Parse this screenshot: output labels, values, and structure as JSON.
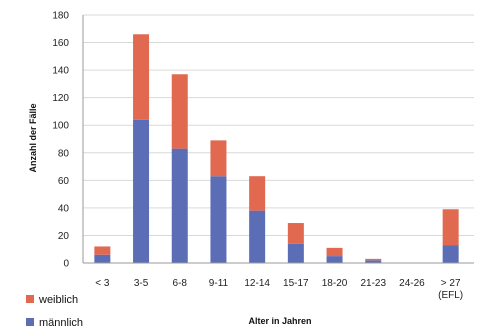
{
  "chart_data": {
    "type": "bar",
    "stacked": true,
    "categories": [
      "< 3",
      "3-5",
      "6-8",
      "9-11",
      "12-14",
      "15-17",
      "18-20",
      "21-23",
      "24-26",
      "> 27"
    ],
    "category_sublabels": [
      "",
      "",
      "",
      "",
      "",
      "",
      "",
      "",
      "",
      "(EFL)"
    ],
    "series": [
      {
        "name": "männlich",
        "color": "#5b6db5",
        "values": [
          6,
          104,
          83,
          63,
          38,
          14,
          5,
          2,
          0,
          13
        ]
      },
      {
        "name": "weiblich",
        "color": "#e06950",
        "values": [
          6,
          62,
          54,
          26,
          25,
          15,
          6,
          1,
          0,
          26
        ]
      }
    ],
    "xlabel": "Alter in Jahren",
    "ylabel": "Anzahl der Fälle",
    "ylim": [
      0,
      180
    ],
    "yticks": [
      0,
      20,
      40,
      60,
      80,
      100,
      120,
      140,
      160,
      180
    ],
    "grid": true,
    "legend": {
      "position": "bottom-left",
      "order": [
        "weiblich",
        "männlich"
      ]
    }
  }
}
